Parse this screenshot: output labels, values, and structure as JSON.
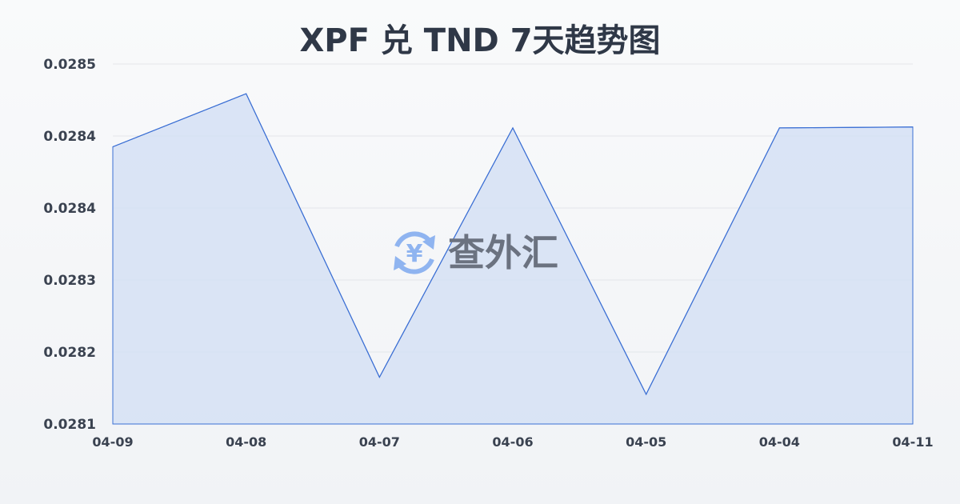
{
  "chart_data": {
    "type": "area",
    "title": "XPF 兑 TND 7天趋势图",
    "xlabel": "",
    "ylabel": "",
    "categories": [
      "04-09",
      "04-08",
      "04-07",
      "04-06",
      "04-05",
      "04-04",
      "04-11"
    ],
    "values": [
      0.028408,
      0.028467,
      0.028152,
      0.028429,
      0.028133,
      0.028429,
      0.02843
    ],
    "ylim": [
      0.0281,
      0.0285
    ],
    "ytick_labels": [
      "0.0285",
      "0.0284",
      "0.0284",
      "0.0283",
      "0.0282",
      "0.0281"
    ],
    "grid": true,
    "line_color": "#3b6fd4",
    "fill_color": "#d5e0f5"
  },
  "watermark": {
    "text": "查外汇",
    "icon": "yen-exchange-icon",
    "icon_color": "#8fb4f0",
    "text_color": "#6b7280"
  }
}
